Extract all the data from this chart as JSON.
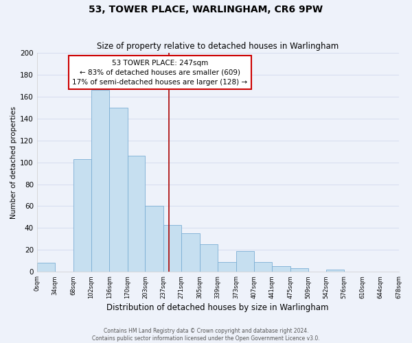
{
  "title": "53, TOWER PLACE, WARLINGHAM, CR6 9PW",
  "subtitle": "Size of property relative to detached houses in Warlingham",
  "xlabel": "Distribution of detached houses by size in Warlingham",
  "ylabel": "Number of detached properties",
  "bin_edges": [
    0,
    34,
    68,
    102,
    136,
    170,
    203,
    237,
    271,
    305,
    339,
    373,
    407,
    441,
    475,
    509,
    542,
    576,
    610,
    644,
    678
  ],
  "bar_heights": [
    8,
    0,
    103,
    166,
    150,
    106,
    60,
    43,
    35,
    25,
    9,
    19,
    9,
    5,
    3,
    0,
    2,
    0,
    0,
    0
  ],
  "bar_color": "#c6dff0",
  "bar_edge_color": "#7baed4",
  "property_size": 247,
  "vline_color": "#aa0000",
  "annotation_line1": "53 TOWER PLACE: 247sqm",
  "annotation_line2": "← 83% of detached houses are smaller (609)",
  "annotation_line3": "17% of semi-detached houses are larger (128) →",
  "annotation_box_color": "#ffffff",
  "annotation_border_color": "#cc0000",
  "ylim": [
    0,
    200
  ],
  "yticks": [
    0,
    20,
    40,
    60,
    80,
    100,
    120,
    140,
    160,
    180,
    200
  ],
  "footer_line1": "Contains HM Land Registry data © Crown copyright and database right 2024.",
  "footer_line2": "Contains public sector information licensed under the Open Government Licence v3.0.",
  "tick_labels": [
    "0sqm",
    "34sqm",
    "68sqm",
    "102sqm",
    "136sqm",
    "170sqm",
    "203sqm",
    "237sqm",
    "271sqm",
    "305sqm",
    "339sqm",
    "373sqm",
    "407sqm",
    "441sqm",
    "475sqm",
    "509sqm",
    "542sqm",
    "576sqm",
    "610sqm",
    "644sqm",
    "678sqm"
  ],
  "background_color": "#eef2fa",
  "grid_color": "#d8dff0",
  "title_fontsize": 10,
  "subtitle_fontsize": 8.5,
  "ylabel_fontsize": 7.5,
  "xlabel_fontsize": 8.5,
  "ytick_fontsize": 7.5,
  "xtick_fontsize": 6.0,
  "annot_fontsize": 7.5,
  "footer_fontsize": 5.5
}
